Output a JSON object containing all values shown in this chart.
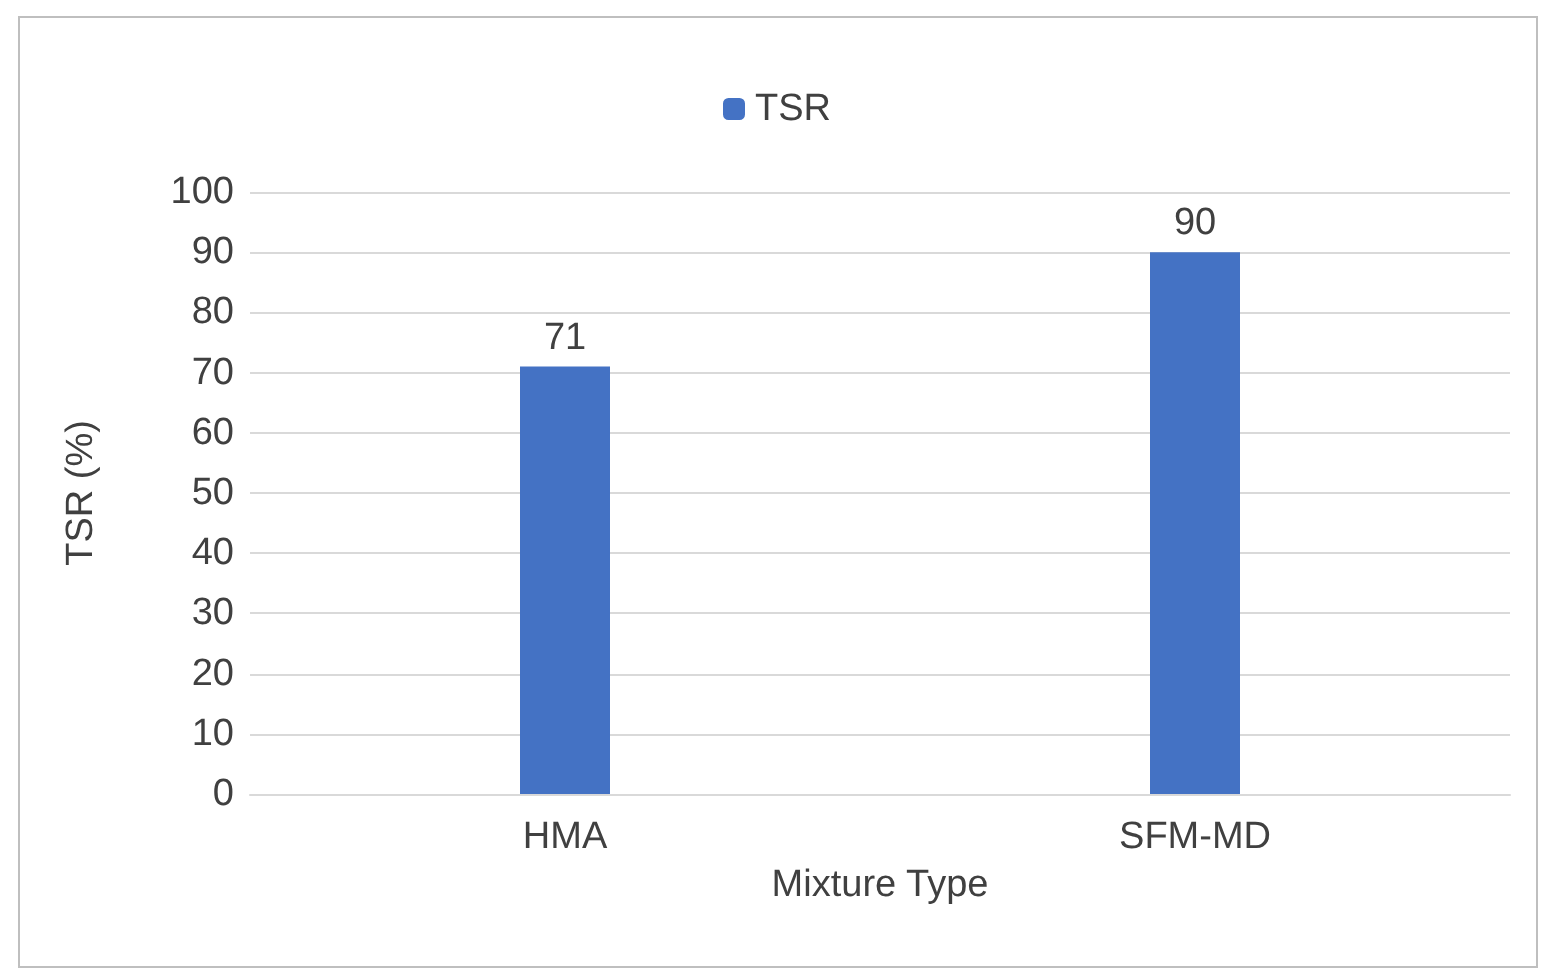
{
  "chart_data": {
    "type": "bar",
    "xlabel": "Mixture Type",
    "ylabel": "TSR (%)",
    "categories": [
      "HMA",
      "SFM-MD"
    ],
    "series": [
      {
        "name": "TSR",
        "color": "#4472c4",
        "values": [
          71,
          90
        ]
      }
    ],
    "ylim": [
      0,
      100
    ],
    "yticks": [
      0,
      10,
      20,
      30,
      40,
      50,
      60,
      70,
      80,
      90,
      100
    ],
    "grid": "y",
    "legend": "top",
    "data_labels": true
  }
}
